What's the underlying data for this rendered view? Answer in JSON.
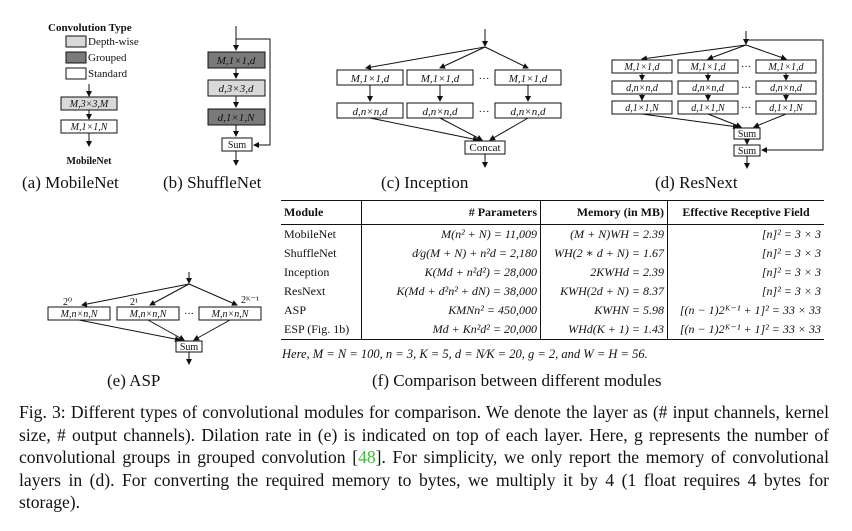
{
  "legend": {
    "title": "Convolution Type",
    "items": [
      {
        "label": "Depth-wise",
        "color": "#d9d9d9"
      },
      {
        "label": "Grouped",
        "color": "#7a7a7a"
      },
      {
        "label": "Standard",
        "color": "#ffffff"
      }
    ]
  },
  "mobilenet": {
    "layers": [
      "M,3×3,M",
      "M,1×1,N"
    ],
    "name": "MobileNet",
    "caption": "(a) MobileNet"
  },
  "shufflenet": {
    "layers": [
      "M,1×1,d",
      "d,3×3,d",
      "d,1×1,N"
    ],
    "sum": "Sum",
    "caption": "(b) ShuffleNet"
  },
  "inception": {
    "top": [
      "M,1×1,d",
      "M,1×1,d",
      "M,1×1,d"
    ],
    "bottom": [
      "d,n×n,d",
      "d,n×n,d",
      "d,n×n,d"
    ],
    "ellipsis": "···",
    "concat": "Concat",
    "caption": "(c) Inception"
  },
  "resnext": {
    "row1": [
      "M,1×1,d",
      "M,1×1,d",
      "M,1×1,d"
    ],
    "row2": [
      "d,n×n,d",
      "d,n×n,d",
      "d,n×n,d"
    ],
    "row3": [
      "d,1×1,N",
      "d,1×1,N",
      "d,1×1,N"
    ],
    "ellipsis": "···",
    "sum1": "Sum",
    "sum2": "Sum",
    "caption": "(d) ResNext"
  },
  "asp": {
    "dilations": [
      "2⁰",
      "2¹",
      "2ᴷ⁻¹"
    ],
    "layers": [
      "M,n×n,N",
      "M,n×n,N",
      "M,n×n,N"
    ],
    "ellipsis": "···",
    "sum": "Sum",
    "caption": "(e) ASP"
  },
  "table": {
    "headers": [
      "Module",
      "# Parameters",
      "Memory (in MB)",
      "Effective Receptive Field"
    ],
    "rows": [
      {
        "module": "MobileNet",
        "params": "M(n² + N) = 11,009",
        "memory": "(M + N)WH = 2.39",
        "erf": "[n]² = 3 × 3"
      },
      {
        "module": "ShuffleNet",
        "params": "d⁄g(M + N) + n²d = 2,180",
        "memory": "WH(2 ∗ d + N) = 1.67",
        "erf": "[n]² = 3 × 3"
      },
      {
        "module": "Inception",
        "params": "K(Md + n²d²) = 28,000",
        "memory": "2KWHd = 2.39",
        "erf": "[n]² = 3 × 3"
      },
      {
        "module": "ResNext",
        "params": "K(Md + d²n² + dN) = 38,000",
        "memory": "KWH(2d + N) = 8.37",
        "erf": "[n]² = 3 × 3"
      },
      {
        "module": "ASP",
        "params": "KMNn² = 450,000",
        "memory": "KWHN = 5.98",
        "erf": "[(n − 1)2ᴷ⁻¹ + 1]² = 33 × 33"
      },
      {
        "module": "ESP (Fig. 1b)",
        "params": "Md + Kn²d² = 20,000",
        "memory": "WHd(K + 1) = 1.43",
        "erf": "[(n − 1)2ᴷ⁻¹ + 1]² = 33 × 33"
      }
    ],
    "note": "Here, M = N = 100, n = 3, K = 5, d = N⁄K = 20, g = 2, and W = H = 56.",
    "caption": "(f) Comparison between different modules"
  },
  "figure_caption": {
    "text_before_cite": "Fig. 3: Different types of convolutional modules for comparison. We denote the layer as (# input channels, kernel size, # output channels). Dilation rate in (e) is indicated on top of each layer. Here, g represents the number of convolutional groups in grouped convolution [",
    "cite": "48",
    "text_after_cite": "]. For simplicity, we only report the memory of convolutional layers in (d). For converting the required memory to bytes, we multiply it by 4 (1 float requires 4 bytes for storage)."
  }
}
